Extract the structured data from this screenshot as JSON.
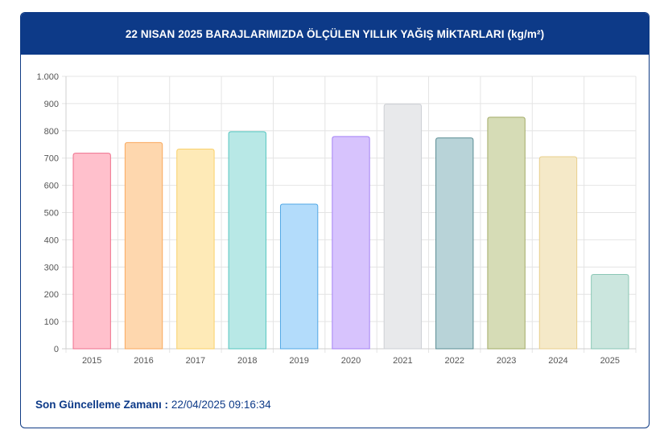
{
  "header": {
    "title": "22 NISAN 2025 BARAJLARIMIZDA ÖLÇÜLEN YILLIK YAĞIŞ MİKTARLARI (kg/m²)"
  },
  "footer": {
    "label": "Son Güncelleme Zamanı :",
    "value": "22/04/2025 09:16:34"
  },
  "chart_data": {
    "type": "bar",
    "categories": [
      "2015",
      "2016",
      "2017",
      "2018",
      "2019",
      "2020",
      "2021",
      "2022",
      "2023",
      "2024",
      "2025"
    ],
    "values": [
      718,
      757,
      733,
      797,
      531,
      779,
      898,
      774,
      850,
      705,
      273
    ],
    "ylim": [
      0,
      1000
    ],
    "yticks": [
      0,
      100,
      200,
      300,
      400,
      500,
      600,
      700,
      800,
      900,
      1000
    ],
    "ytick_labels": [
      "0",
      "100",
      "200",
      "300",
      "400",
      "500",
      "600",
      "700",
      "800",
      "900",
      "1.000"
    ],
    "grid": true,
    "colors": {
      "fill": [
        "#ffc0cc",
        "#fed7ae",
        "#feeab7",
        "#b8e8e6",
        "#b3dcfb",
        "#d7c3fd",
        "#e8e9eb",
        "#b8d3d8",
        "#d6dcb6",
        "#f5e9c8",
        "#cbe6de"
      ],
      "stroke": [
        "#ef6f8c",
        "#f9a95e",
        "#f9d06a",
        "#55c6c0",
        "#52a9e6",
        "#a482f5",
        "#cdd0d5",
        "#5a8c93",
        "#a3ab66",
        "#e8cf8c",
        "#8ac7b5"
      ]
    }
  }
}
